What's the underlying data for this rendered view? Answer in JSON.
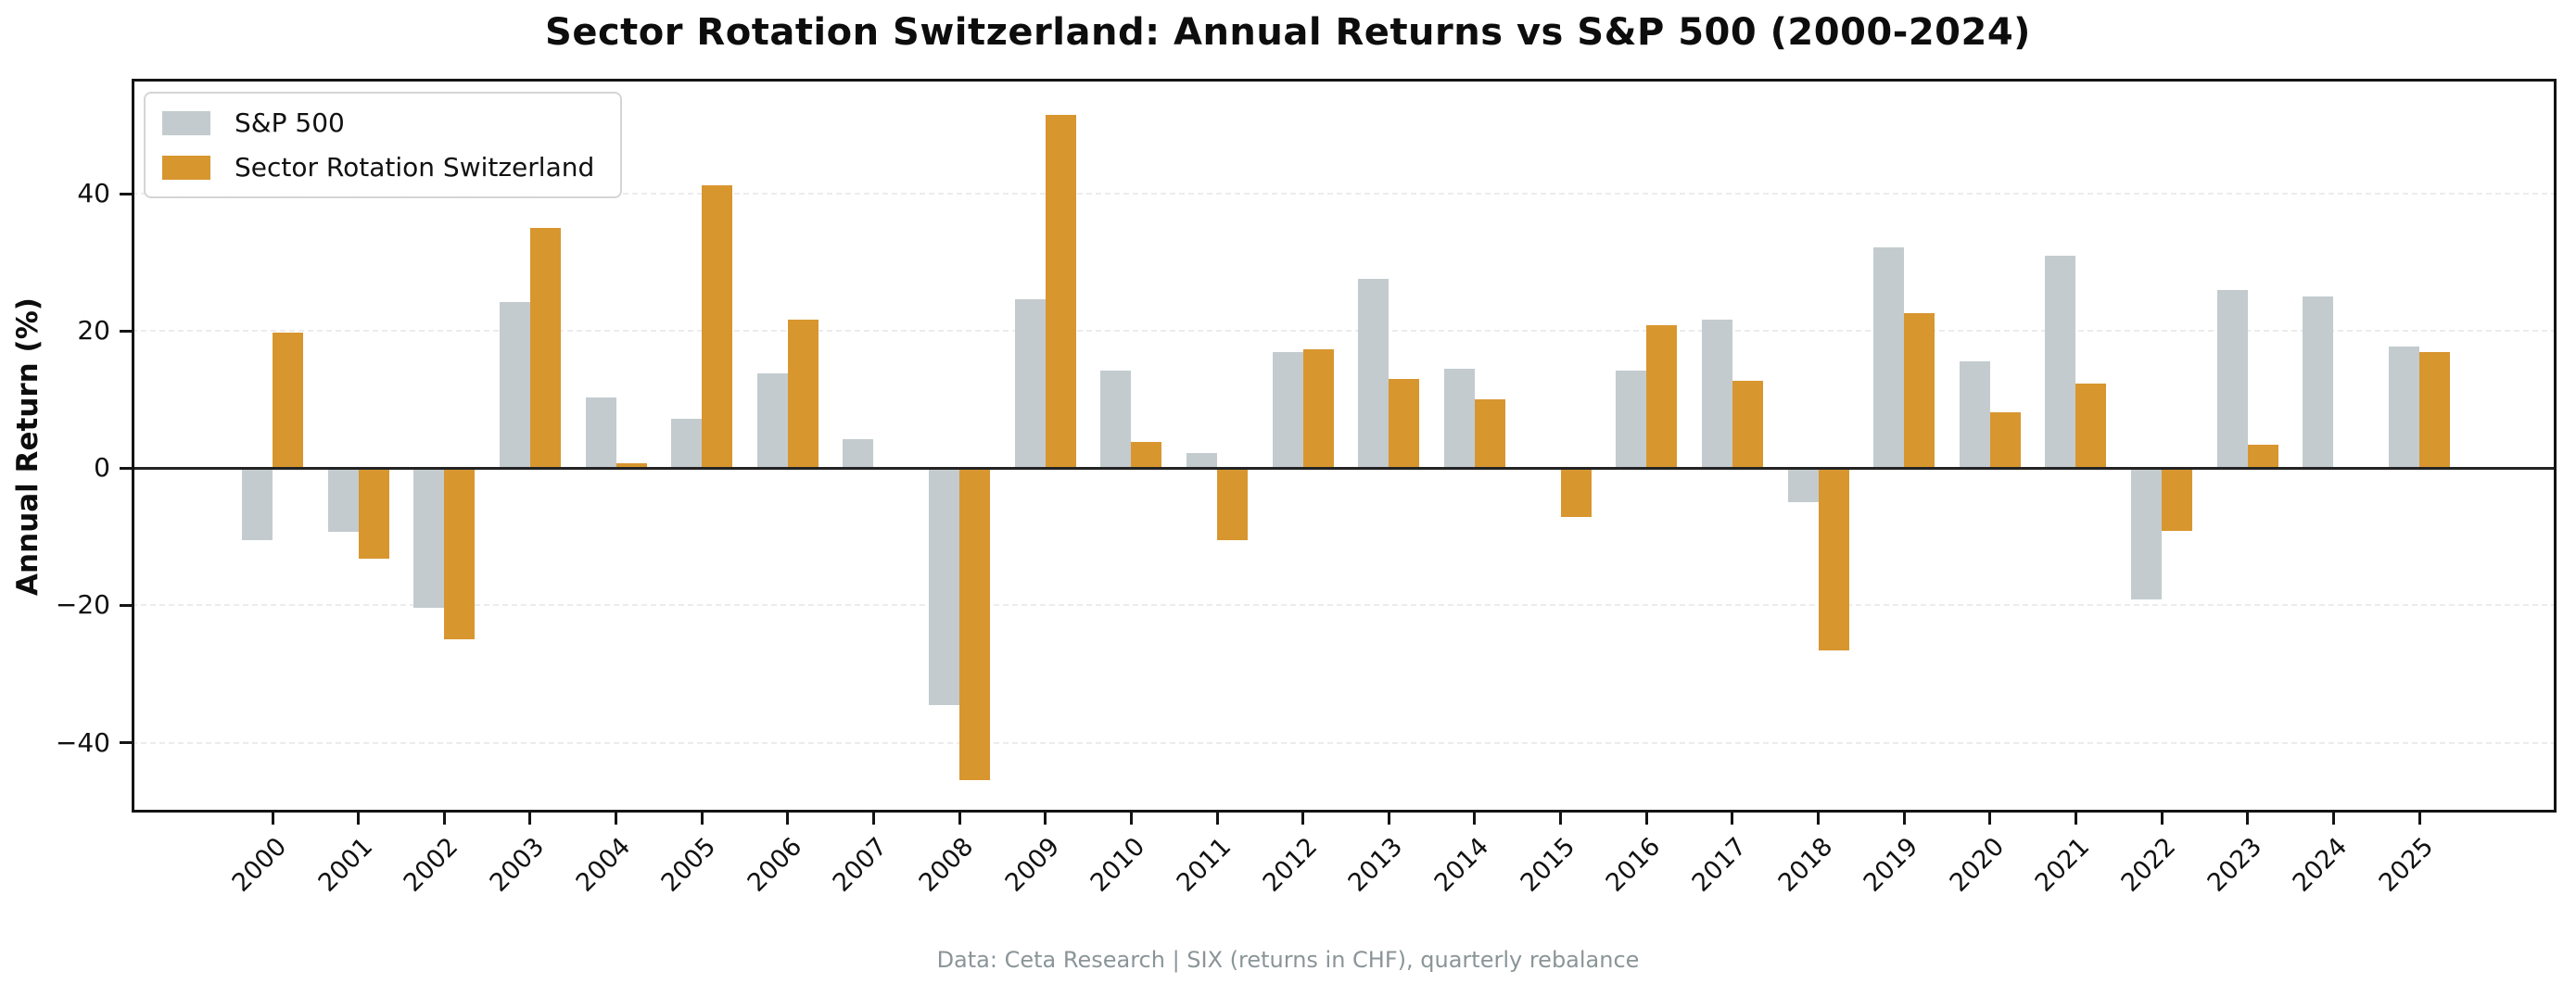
{
  "title": "Sector Rotation Switzerland: Annual Returns vs S&P 500 (2000-2024)",
  "ylabel": "Annual Return (%)",
  "footer": "Data: Ceta Research | SIX (returns in CHF), quarterly rebalance",
  "colors": {
    "sp500": "#c3cbce",
    "strategy": "#d8962f",
    "grid": "#ececec",
    "zero_line": "#232323",
    "spine": "#141414",
    "footer_text": "#8b9598"
  },
  "chart_data": {
    "type": "bar",
    "title": "Sector Rotation Switzerland: Annual Returns vs S&P 500 (2000-2024)",
    "xlabel": "",
    "ylabel": "Annual Return (%)",
    "categories": [
      2000,
      2001,
      2002,
      2003,
      2004,
      2005,
      2006,
      2007,
      2008,
      2009,
      2010,
      2011,
      2012,
      2013,
      2014,
      2015,
      2016,
      2017,
      2018,
      2019,
      2020,
      2021,
      2022,
      2023,
      2024,
      2025
    ],
    "series": [
      {
        "name": "S&P 500",
        "color": "#c3cbce",
        "values": [
          -10.5,
          -9.2,
          -20.3,
          24.2,
          10.3,
          7.2,
          13.8,
          4.3,
          -34.5,
          24.6,
          14.2,
          2.2,
          17.0,
          27.6,
          14.5,
          0.0,
          14.3,
          21.7,
          -5.0,
          32.2,
          15.6,
          31.0,
          -19.1,
          26.0,
          25.1,
          17.8
        ]
      },
      {
        "name": "Sector Rotation Switzerland",
        "color": "#d8962f",
        "values": [
          19.8,
          -13.2,
          -25.0,
          35.0,
          0.8,
          41.3,
          21.7,
          0.0,
          -45.5,
          51.5,
          3.9,
          -10.5,
          17.4,
          13.0,
          10.0,
          -7.1,
          20.9,
          12.8,
          -26.6,
          22.6,
          8.1,
          12.3,
          -9.1,
          3.5,
          0.0,
          16.9
        ]
      }
    ],
    "ylim": [
      -50.2,
      56.8
    ],
    "yticks": [
      -40,
      -20,
      0,
      20,
      40
    ],
    "grid": true,
    "grid_style": "dashed",
    "legend_position": "upper left",
    "x_tick_rotation": 45
  }
}
